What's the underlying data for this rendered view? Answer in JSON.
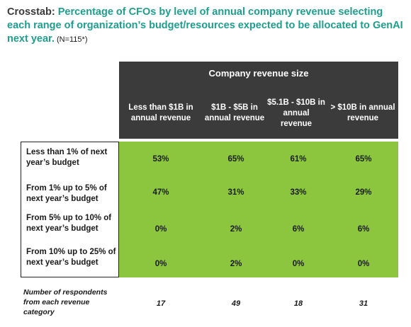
{
  "title": {
    "prefix": "Crosstab: ",
    "main": "Percentage of CFOs by level of annual company revenue selecting each range of organization’s budget/resources expected to be allocated to GenAI next year.",
    "note": " (N=115*)"
  },
  "chart_data": {
    "type": "table",
    "header": "Company revenue size",
    "columns": [
      "Less than $1B in annual revenue",
      "$1B - $5B in annual revenue",
      "$5.1B - $10B in annual revenue",
      "> $10B in annual revenue"
    ],
    "rows": [
      {
        "label": "Less than 1% of next year’s budget",
        "values": [
          "53%",
          "65%",
          "61%",
          "65%"
        ]
      },
      {
        "label": "From 1% up to 5% of next year’s budget",
        "values": [
          "47%",
          "31%",
          "33%",
          "29%"
        ]
      },
      {
        "label": "From 5% up to 10% of next year’s budget",
        "values": [
          "0%",
          "2%",
          "6%",
          "6%"
        ]
      },
      {
        "label": "From 10% up to 25% of next year’s budget",
        "values": [
          "0%",
          "2%",
          "0%",
          "0%"
        ]
      }
    ],
    "respondents": {
      "label": "Number of respondents from each revenue category",
      "values": [
        "17",
        "49",
        "18",
        "31"
      ]
    }
  },
  "colors": {
    "title_accent": "#1f9e8e",
    "header_background": "#3b3b3b",
    "cell_background": "#8cc63f"
  }
}
